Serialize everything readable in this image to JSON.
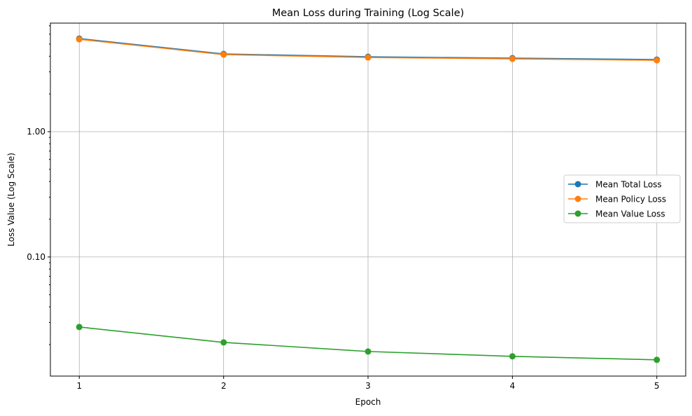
{
  "chart_data": {
    "type": "line",
    "title": "Mean Loss during Training (Log Scale)",
    "xlabel": "Epoch",
    "ylabel": "Loss Value (Log Scale)",
    "x": [
      1,
      2,
      3,
      4,
      5
    ],
    "x_tick_labels": [
      "1",
      "2",
      "3",
      "4",
      "5"
    ],
    "xlim": [
      0.8,
      5.2
    ],
    "y_scale": "log",
    "ylim": [
      0.0112,
      7.35
    ],
    "y_tick_values": [
      0.1,
      1.0
    ],
    "y_tick_labels": [
      "0.10",
      "1.00"
    ],
    "grid": true,
    "legend_position": "center-right",
    "series": [
      {
        "name": "Mean Total Loss",
        "color": "#1f77b4",
        "marker": "circle",
        "values": [
          5.53,
          4.17,
          3.96,
          3.86,
          3.76
        ]
      },
      {
        "name": "Mean Policy Loss",
        "color": "#ff7f0e",
        "marker": "circle",
        "values": [
          5.46,
          4.12,
          3.91,
          3.81,
          3.71
        ]
      },
      {
        "name": "Mean Value Loss",
        "color": "#2ca02c",
        "marker": "circle",
        "values": [
          0.0276,
          0.0208,
          0.0176,
          0.0161,
          0.0151
        ]
      }
    ]
  }
}
